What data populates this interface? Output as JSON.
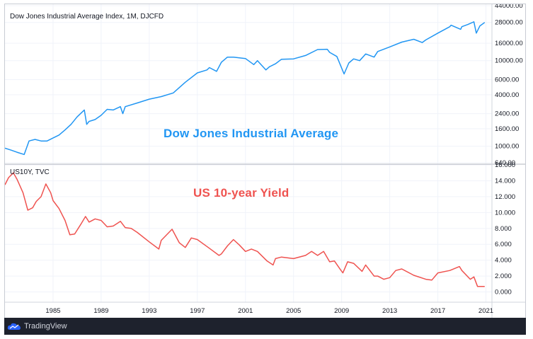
{
  "footer": {
    "brand": "TradingView",
    "logo_icon": "tradingview-cloud-icon"
  },
  "colors": {
    "dow": "#2196f3",
    "yield": "#ef5350",
    "grid": "#d1d4dc",
    "axis": "#131722"
  },
  "chart_data": [
    {
      "type": "line",
      "title": "Dow Jones Industrial Average Index, 1M, DJCFD",
      "annotation": "Dow Jones Industrial Average",
      "yscale": "log",
      "ylim": [
        640,
        44000
      ],
      "xlim": [
        1981,
        2021.5
      ],
      "y_ticks": [
        "44000.00",
        "28000.00",
        "16000.00",
        "10000.00",
        "6000.00",
        "4000.00",
        "2400.00",
        "1600.00",
        "1000.00",
        "640.00"
      ],
      "y_tick_values": [
        44000,
        28000,
        16000,
        10000,
        6000,
        4000,
        2400,
        1600,
        1000,
        640
      ],
      "series": [
        {
          "x": [
            1981,
            1981.5,
            1982,
            1982.6,
            1983,
            1983.5,
            1984,
            1984.5,
            1985,
            1985.5,
            1986,
            1986.5,
            1987,
            1987.6,
            1987.8,
            1988,
            1988.5,
            1989,
            1989.5,
            1990,
            1990.6,
            1990.8,
            1991,
            1992,
            1993,
            1994,
            1995,
            1996,
            1997,
            1997.8,
            1998,
            1998.6,
            1999,
            1999.5,
            2000,
            2001,
            2001.7,
            2002,
            2002.7,
            2003,
            2003.5,
            2004,
            2005,
            2006,
            2007,
            2007.8,
            2008,
            2008.6,
            2009.2,
            2009.6,
            2010,
            2010.5,
            2011,
            2011.7,
            2012,
            2013,
            2014,
            2015,
            2015.7,
            2016,
            2017,
            2018,
            2018.1,
            2018.9,
            2019,
            2019.5,
            2020,
            2020.2,
            2020.5,
            2020.9
          ],
          "y": [
            950,
            900,
            850,
            800,
            1150,
            1200,
            1150,
            1150,
            1250,
            1350,
            1550,
            1800,
            2200,
            2650,
            1800,
            1950,
            2050,
            2300,
            2700,
            2650,
            2900,
            2400,
            2900,
            3200,
            3550,
            3800,
            4200,
            5600,
            7200,
            7800,
            8300,
            7500,
            9600,
            11000,
            11000,
            10600,
            9000,
            10000,
            7800,
            8500,
            9200,
            10400,
            10500,
            11500,
            13500,
            13600,
            12500,
            11200,
            7000,
            9400,
            10500,
            10000,
            12000,
            11000,
            12800,
            14500,
            16500,
            17800,
            16300,
            17500,
            21000,
            25000,
            26000,
            23300,
            25000,
            26500,
            28500,
            21000,
            25500,
            28000
          ]
        }
      ]
    },
    {
      "type": "line",
      "title": "US10Y, TVC",
      "annotation": "US 10-year Yield",
      "ylim": [
        -1.2,
        16
      ],
      "xlim": [
        1981,
        2021.5
      ],
      "x_ticks": [
        "1985",
        "1989",
        "1993",
        "1997",
        "2001",
        "2005",
        "2009",
        "2013",
        "2017",
        "2021"
      ],
      "x_tick_values": [
        1985,
        1989,
        1993,
        1997,
        2001,
        2005,
        2009,
        2013,
        2017,
        2021
      ],
      "y_ticks": [
        "16.000",
        "14.000",
        "12.000",
        "10.000",
        "8.000",
        "6.000",
        "4.000",
        "2.000",
        "0.000"
      ],
      "y_tick_values": [
        16,
        14,
        12,
        10,
        8,
        6,
        4,
        2,
        0
      ],
      "series": [
        {
          "x": [
            1981,
            1981.3,
            1981.7,
            1982,
            1982.5,
            1982.9,
            1983.3,
            1983.6,
            1984,
            1984.4,
            1984.8,
            1985,
            1985.5,
            1986,
            1986.4,
            1986.8,
            1987.3,
            1987.7,
            1988,
            1988.5,
            1989,
            1989.5,
            1990,
            1990.6,
            1991,
            1991.5,
            1992,
            1993,
            1993.8,
            1994,
            1994.9,
            1995.5,
            1996,
            1996.5,
            1997,
            1998,
            1998.8,
            1999,
            1999.5,
            2000,
            2000.5,
            2001,
            2001.5,
            2002,
            2002.8,
            2003.3,
            2003.5,
            2004,
            2005,
            2006,
            2006.5,
            2007,
            2007.5,
            2008,
            2008.4,
            2008.9,
            2009.1,
            2009.5,
            2010,
            2010.7,
            2011,
            2011.7,
            2012,
            2012.5,
            2013,
            2013.5,
            2014,
            2015,
            2016,
            2016.5,
            2017,
            2018,
            2018.8,
            2019,
            2019.7,
            2020,
            2020.3,
            2020.9
          ],
          "y": [
            13.5,
            14.4,
            15.0,
            14.2,
            12.5,
            10.3,
            10.6,
            11.4,
            12.0,
            13.6,
            12.5,
            11.5,
            10.5,
            9.0,
            7.2,
            7.3,
            8.5,
            9.5,
            8.8,
            9.2,
            9.0,
            8.2,
            8.3,
            8.9,
            8.1,
            8.0,
            7.5,
            6.3,
            5.4,
            6.5,
            7.9,
            6.2,
            5.6,
            6.8,
            6.6,
            5.5,
            4.6,
            4.8,
            5.8,
            6.6,
            5.9,
            5.1,
            5.4,
            5.1,
            3.9,
            3.4,
            4.2,
            4.4,
            4.2,
            4.6,
            5.1,
            4.6,
            5.1,
            3.8,
            3.9,
            2.8,
            2.4,
            3.8,
            3.6,
            2.6,
            3.4,
            2.0,
            2.0,
            1.6,
            1.8,
            2.7,
            2.9,
            2.1,
            1.6,
            1.5,
            2.4,
            2.7,
            3.2,
            2.7,
            1.6,
            1.9,
            0.7,
            0.7
          ]
        }
      ]
    }
  ]
}
